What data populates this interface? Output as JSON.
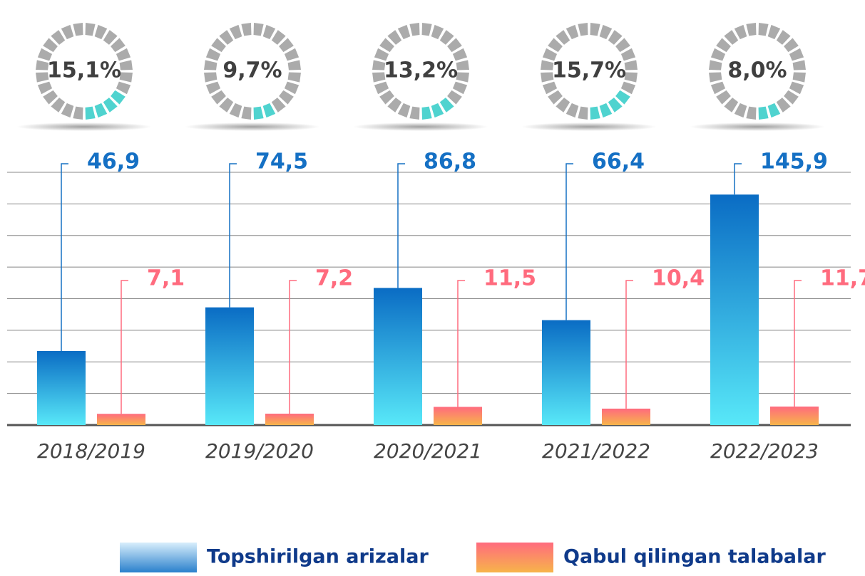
{
  "chart_data": {
    "type": "bar",
    "categories": [
      "2018/2019",
      "2019/2020",
      "2020/2021",
      "2021/2022",
      "2022/2023"
    ],
    "series": [
      {
        "name": "Topshirilgan arizalar",
        "color": "#1570c4",
        "values": [
          46.9,
          74.5,
          86.8,
          66.4,
          145.9
        ],
        "value_labels": [
          "46,9",
          "74,5",
          "86,8",
          "66,4",
          "145,9"
        ]
      },
      {
        "name": "Qabul qilingan talabalar",
        "color": "#ff6b7e",
        "values": [
          7.1,
          7.2,
          11.5,
          10.4,
          11.7
        ],
        "value_labels": [
          "7,1",
          "7,2",
          "11,5",
          "10,4",
          "11,7"
        ]
      }
    ],
    "ratio_values": [
      15.1,
      9.7,
      13.2,
      15.7,
      8.0
    ],
    "ratio_labels": [
      "15,1%",
      "9,7%",
      "13,2%",
      "15,7%",
      "8,0%"
    ],
    "ylim": [
      0,
      160
    ],
    "yticks": [
      0,
      20,
      40,
      60,
      80,
      100,
      120,
      140,
      160
    ],
    "grid": true
  }
}
